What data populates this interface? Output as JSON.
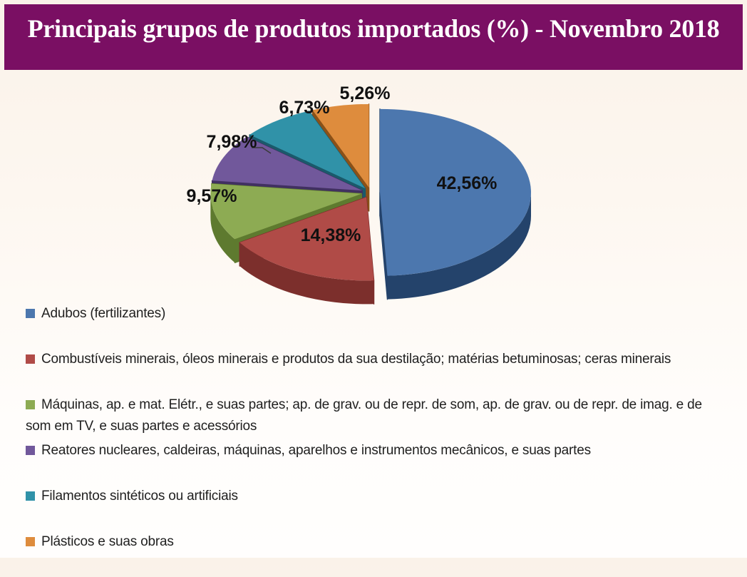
{
  "header": {
    "title": "Principais grupos de produtos importados (%) - Novembro 2018",
    "background_color": "#7A0F63",
    "text_color": "#FFFFFF"
  },
  "chart_data": {
    "type": "pie",
    "title": "Principais grupos de produtos importados (%) - Novembro 2018",
    "unit": "%",
    "effect": "3d-exploded",
    "legend_position": "bottom-left",
    "slices": [
      {
        "label": "Adubos (fertilizantes)",
        "value": 42.56,
        "display": "42,56%",
        "color": "#4C77AE",
        "side_color": "#24436B"
      },
      {
        "label": "Combustíveis minerais, óleos minerais e produtos da sua destilação; matérias betuminosas; ceras minerais",
        "value": 14.38,
        "display": "14,38%",
        "color": "#B04B47",
        "side_color": "#7C2F2C"
      },
      {
        "label": "Máquinas, ap. e mat. Elétr., e suas partes; ap. de grav. ou de repr. de som, ap. de grav. ou de repr. de imag. e de som em TV, e suas partes e acessórios",
        "value": 9.57,
        "display": "9,57%",
        "color": "#8DAB53",
        "side_color": "#5E7A2F"
      },
      {
        "label": "Reatores nucleares, caldeiras, máquinas, aparelhos e instrumentos mecânicos, e suas partes",
        "value": 7.98,
        "display": "7,98%",
        "color": "#71589B",
        "side_color": "#413061"
      },
      {
        "label": "Filamentos sintéticos ou artificiais",
        "value": 6.73,
        "display": "6,73%",
        "color": "#3092A8",
        "side_color": "#1A5A6B"
      },
      {
        "label": "Plásticos e suas obras",
        "value": 5.26,
        "display": "5,26%",
        "color": "#DE8C3D",
        "side_color": "#8A5118"
      }
    ]
  }
}
